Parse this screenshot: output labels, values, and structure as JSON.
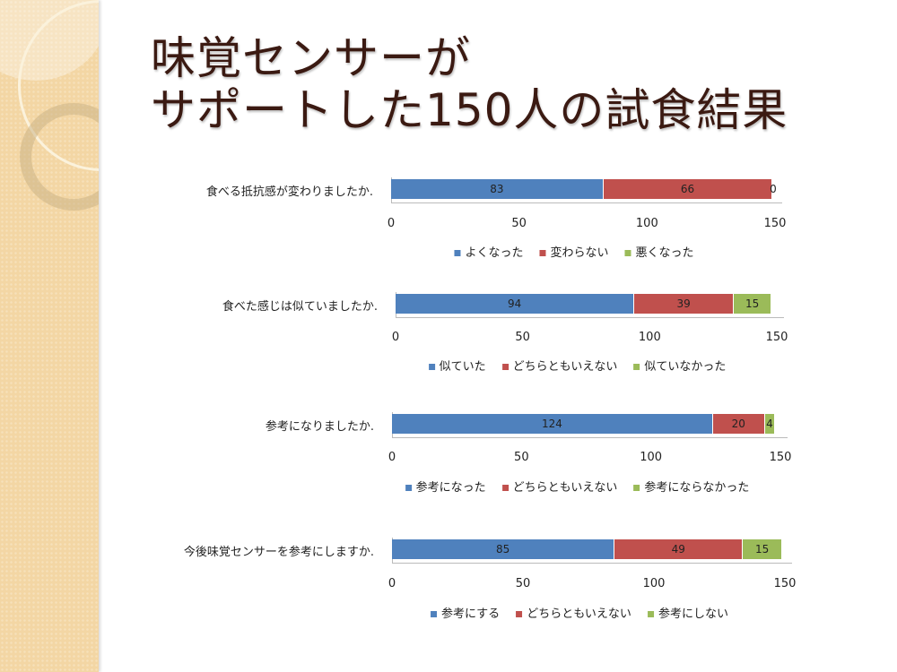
{
  "title_lines": [
    "味覚センサーが",
    "サポートした150人の試食結果"
  ],
  "colors": {
    "blue": "#4f81bd",
    "red": "#c0504d",
    "green": "#9bbb59"
  },
  "chart_data": [
    {
      "type": "bar",
      "stacked": true,
      "orientation": "horizontal",
      "question": "食べる抵抗感が変わりましたか.",
      "xlim": [
        0,
        150
      ],
      "ticks": [
        "0",
        "50",
        "100",
        "150"
      ],
      "series": [
        {
          "name": "よくなった",
          "value": 83
        },
        {
          "name": "変わらない",
          "value": 66
        },
        {
          "name": "悪くなった",
          "value": 0
        }
      ],
      "legend": "bottom"
    },
    {
      "type": "bar",
      "stacked": true,
      "orientation": "horizontal",
      "question": "食べた感じは似ていましたか.",
      "xlim": [
        0,
        150
      ],
      "ticks": [
        "0",
        "50",
        "100",
        "150"
      ],
      "series": [
        {
          "name": "似ていた",
          "value": 94
        },
        {
          "name": "どちらともいえない",
          "value": 39
        },
        {
          "name": "似ていなかった",
          "value": 15
        }
      ],
      "legend": "bottom"
    },
    {
      "type": "bar",
      "stacked": true,
      "orientation": "horizontal",
      "question": "参考になりましたか.",
      "xlim": [
        0,
        150
      ],
      "ticks": [
        "0",
        "50",
        "100",
        "150"
      ],
      "series": [
        {
          "name": "参考になった",
          "value": 124
        },
        {
          "name": "どちらともいえない",
          "value": 20
        },
        {
          "name": "参考にならなかった",
          "value": 4
        }
      ],
      "legend": "bottom"
    },
    {
      "type": "bar",
      "stacked": true,
      "orientation": "horizontal",
      "question": "今後味覚センサーを参考にしますか.",
      "xlim": [
        0,
        150
      ],
      "ticks": [
        "0",
        "50",
        "100",
        "150"
      ],
      "series": [
        {
          "name": "参考にする",
          "value": 85
        },
        {
          "name": "どちらともいえない",
          "value": 49
        },
        {
          "name": "参考にしない",
          "value": 15
        }
      ],
      "legend": "bottom"
    }
  ]
}
